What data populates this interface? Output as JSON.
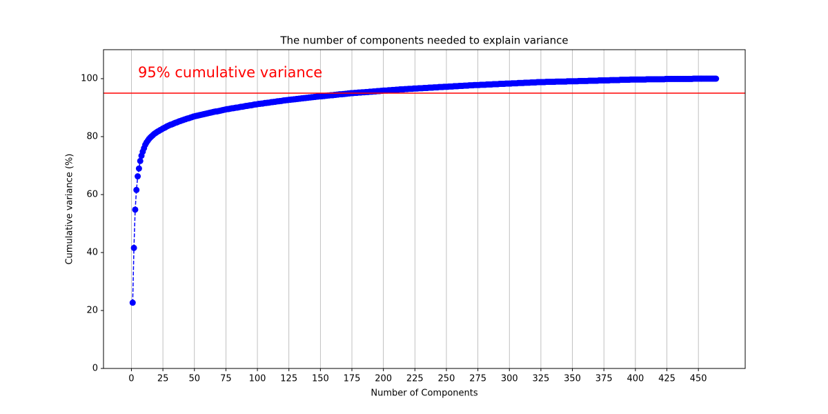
{
  "chart_data": {
    "type": "line",
    "title": "The number of components needed to explain variance",
    "xlabel": "Number of Components",
    "ylabel": "Cumulative variance (%)",
    "annotation": "95% cumulative variance",
    "hline": {
      "value": 95,
      "color": "#ff0000"
    },
    "color": "#0000ff",
    "grid": "x",
    "xlim": [
      -22.15,
      487.15
    ],
    "ylim": [
      0,
      110
    ],
    "xticks": [
      0,
      25,
      50,
      75,
      100,
      125,
      150,
      175,
      200,
      225,
      250,
      275,
      300,
      325,
      350,
      375,
      400,
      425,
      450
    ],
    "yticks": [
      0,
      20,
      40,
      60,
      80,
      100
    ],
    "x": [
      1,
      2,
      3,
      4,
      5,
      6,
      7,
      8,
      9,
      10,
      11,
      12,
      13,
      14,
      15,
      16,
      17,
      18,
      19,
      20,
      21,
      22,
      23,
      24,
      25,
      26,
      27,
      28,
      29,
      30,
      31,
      32,
      33,
      34,
      35,
      36,
      37,
      38,
      39,
      40,
      41,
      42,
      43,
      44,
      45,
      46,
      47,
      48,
      49,
      50,
      51,
      52,
      53,
      54,
      55,
      56,
      57,
      58,
      59,
      60,
      61,
      62,
      63,
      64,
      65,
      66,
      67,
      68,
      69,
      70,
      71,
      72,
      73,
      74,
      75,
      76,
      77,
      78,
      79,
      80,
      81,
      82,
      83,
      84,
      85,
      86,
      87,
      88,
      89,
      90,
      91,
      92,
      93,
      94,
      95,
      96,
      97,
      98,
      99,
      100,
      101,
      102,
      103,
      104,
      105,
      106,
      107,
      108,
      109,
      110,
      111,
      112,
      113,
      114,
      115,
      116,
      117,
      118,
      119,
      120,
      121,
      122,
      123,
      124,
      125,
      126,
      127,
      128,
      129,
      130,
      131,
      132,
      133,
      134,
      135,
      136,
      137,
      138,
      139,
      140,
      141,
      142,
      143,
      144,
      145,
      146,
      147,
      148,
      149,
      150,
      151,
      152,
      153,
      154,
      155,
      156,
      157,
      158,
      159,
      160,
      161,
      162,
      163,
      164,
      165,
      166,
      167,
      168,
      169,
      170,
      171,
      172,
      173,
      174,
      175,
      176,
      177,
      178,
      179,
      180,
      181,
      182,
      183,
      184,
      185,
      186,
      187,
      188,
      189,
      190,
      191,
      192,
      193,
      194,
      195,
      196,
      197,
      198,
      199,
      200,
      201,
      202,
      203,
      204,
      205,
      206,
      207,
      208,
      209,
      210,
      211,
      212,
      213,
      214,
      215,
      216,
      217,
      218,
      219,
      220,
      221,
      222,
      223,
      224,
      225,
      226,
      227,
      228,
      229,
      230,
      231,
      232,
      233,
      234,
      235,
      236,
      237,
      238,
      239,
      240,
      241,
      242,
      243,
      244,
      245,
      246,
      247,
      248,
      249,
      250,
      251,
      252,
      253,
      254,
      255,
      256,
      257,
      258,
      259,
      260,
      261,
      262,
      263,
      264,
      265,
      266,
      267,
      268,
      269,
      270,
      271,
      272,
      273,
      274,
      275,
      276,
      277,
      278,
      279,
      280,
      281,
      282,
      283,
      284,
      285,
      286,
      287,
      288,
      289,
      290,
      291,
      292,
      293,
      294,
      295,
      296,
      297,
      298,
      299,
      300,
      301,
      302,
      303,
      304,
      305,
      306,
      307,
      308,
      309,
      310,
      311,
      312,
      313,
      314,
      315,
      316,
      317,
      318,
      319,
      320,
      321,
      322,
      323,
      324,
      325,
      326,
      327,
      328,
      329,
      330,
      331,
      332,
      333,
      334,
      335,
      336,
      337,
      338,
      339,
      340,
      341,
      342,
      343,
      344,
      345,
      346,
      347,
      348,
      349,
      350,
      351,
      352,
      353,
      354,
      355,
      356,
      357,
      358,
      359,
      360,
      361,
      362,
      363,
      364,
      365,
      366,
      367,
      368,
      369,
      370,
      371,
      372,
      373,
      374,
      375,
      376,
      377,
      378,
      379,
      380,
      381,
      382,
      383,
      384,
      385,
      386,
      387,
      388,
      389,
      390,
      391,
      392,
      393,
      394,
      395,
      396,
      397,
      398,
      399,
      400,
      401,
      402,
      403,
      404,
      405,
      406,
      407,
      408,
      409,
      410,
      411,
      412,
      413,
      414,
      415,
      416,
      417,
      418,
      419,
      420,
      421,
      422,
      423,
      424,
      425,
      426,
      427,
      428,
      429,
      430,
      431,
      432,
      433,
      434,
      435,
      436,
      437,
      438,
      439,
      440,
      441,
      442,
      443,
      444,
      445,
      446,
      447,
      448,
      449,
      450,
      451,
      452,
      453,
      454,
      455,
      456,
      457,
      458,
      459,
      460,
      461,
      462,
      463,
      464
    ],
    "values": [
      22.7,
      41.6,
      54.8,
      61.6,
      66.3,
      69.0,
      71.6,
      73.4,
      74.8,
      76.0,
      77.2,
      78.0,
      78.6,
      79.2,
      79.7,
      80.1,
      80.5,
      80.9,
      81.2,
      81.5,
      81.8,
      82.0,
      82.3,
      82.5,
      82.8,
      83.0,
      83.2,
      83.5,
      83.7,
      83.9,
      84.1,
      84.2,
      84.4,
      84.6,
      84.8,
      84.9,
      85.1,
      85.3,
      85.4,
      85.6,
      85.7,
      85.9,
      86.0,
      86.2,
      86.3,
      86.4,
      86.6,
      86.7,
      86.9,
      87.0,
      87.1,
      87.2,
      87.3,
      87.4,
      87.5,
      87.6,
      87.7,
      87.8,
      87.9,
      88.0,
      88.1,
      88.2,
      88.3,
      88.4,
      88.5,
      88.6,
      88.7,
      88.7,
      88.8,
      88.9,
      89.0,
      89.1,
      89.2,
      89.3,
      89.4,
      89.5,
      89.5,
      89.6,
      89.7,
      89.8,
      89.8,
      89.9,
      90.0,
      90.0,
      90.1,
      90.2,
      90.3,
      90.3,
      90.4,
      90.5,
      90.6,
      90.6,
      90.7,
      90.8,
      90.8,
      90.9,
      91.0,
      91.1,
      91.1,
      91.2,
      91.3,
      91.3,
      91.4,
      91.4,
      91.5,
      91.6,
      91.6,
      91.7,
      91.7,
      91.8,
      91.9,
      91.9,
      92.0,
      92.0,
      92.1,
      92.2,
      92.2,
      92.3,
      92.3,
      92.4,
      92.5,
      92.5,
      92.6,
      92.6,
      92.7,
      92.7,
      92.8,
      92.8,
      92.9,
      92.9,
      93.0,
      93.0,
      93.1,
      93.1,
      93.2,
      93.2,
      93.3,
      93.3,
      93.4,
      93.4,
      93.5,
      93.5,
      93.6,
      93.6,
      93.7,
      93.7,
      93.8,
      93.8,
      93.9,
      93.9,
      93.9,
      94.0,
      94.0,
      94.1,
      94.1,
      94.2,
      94.2,
      94.3,
      94.3,
      94.3,
      94.4,
      94.4,
      94.5,
      94.5,
      94.6,
      94.6,
      94.6,
      94.7,
      94.7,
      94.8,
      94.8,
      94.9,
      94.9,
      95.0,
      95.0,
      95.0,
      95.1,
      95.1,
      95.1,
      95.2,
      95.2,
      95.2,
      95.3,
      95.3,
      95.3,
      95.4,
      95.4,
      95.4,
      95.5,
      95.5,
      95.5,
      95.6,
      95.6,
      95.6,
      95.7,
      95.7,
      95.7,
      95.8,
      95.8,
      95.9,
      95.9,
      95.9,
      95.9,
      96.0,
      96.0,
      96.0,
      96.1,
      96.1,
      96.1,
      96.2,
      96.2,
      96.2,
      96.3,
      96.3,
      96.3,
      96.3,
      96.4,
      96.4,
      96.4,
      96.5,
      96.5,
      96.5,
      96.5,
      96.6,
      96.6,
      96.6,
      96.6,
      96.7,
      96.7,
      96.7,
      96.7,
      96.8,
      96.8,
      96.8,
      96.8,
      96.9,
      96.9,
      96.9,
      96.9,
      97.0,
      97.0,
      97.0,
      97.0,
      97.1,
      97.1,
      97.1,
      97.1,
      97.2,
      97.2,
      97.2,
      97.2,
      97.3,
      97.3,
      97.3,
      97.3,
      97.4,
      97.4,
      97.4,
      97.4,
      97.5,
      97.5,
      97.5,
      97.5,
      97.6,
      97.6,
      97.6,
      97.6,
      97.7,
      97.7,
      97.7,
      97.7,
      97.8,
      97.8,
      97.8,
      97.8,
      97.8,
      97.9,
      97.9,
      97.9,
      97.9,
      97.9,
      98.0,
      98.0,
      98.0,
      98.0,
      98.0,
      98.1,
      98.1,
      98.1,
      98.1,
      98.1,
      98.2,
      98.2,
      98.2,
      98.2,
      98.2,
      98.3,
      98.3,
      98.3,
      98.3,
      98.3,
      98.4,
      98.4,
      98.4,
      98.4,
      98.4,
      98.5,
      98.5,
      98.5,
      98.5,
      98.5,
      98.6,
      98.6,
      98.6,
      98.6,
      98.6,
      98.7,
      98.7,
      98.7,
      98.7,
      98.7,
      98.8,
      98.8,
      98.8,
      98.8,
      98.8,
      98.8,
      98.8,
      98.9,
      98.9,
      98.9,
      98.9,
      98.9,
      98.9,
      98.9,
      98.9,
      99.0,
      99.0,
      99.0,
      99.0,
      99.0,
      99.0,
      99.0,
      99.0,
      99.0,
      99.1,
      99.1,
      99.1,
      99.1,
      99.1,
      99.1,
      99.1,
      99.1,
      99.1,
      99.2,
      99.2,
      99.2,
      99.2,
      99.2,
      99.2,
      99.2,
      99.2,
      99.3,
      99.3,
      99.3,
      99.3,
      99.3,
      99.3,
      99.3,
      99.3,
      99.4,
      99.4,
      99.4,
      99.4,
      99.4,
      99.4,
      99.4,
      99.4,
      99.4,
      99.5,
      99.5,
      99.5,
      99.5,
      99.5,
      99.5,
      99.5,
      99.5,
      99.6,
      99.6,
      99.6,
      99.6,
      99.6,
      99.6,
      99.6,
      99.6,
      99.7,
      99.7,
      99.7,
      99.7,
      99.7,
      99.7,
      99.7,
      99.7,
      99.7,
      99.7,
      99.7,
      99.7,
      99.7,
      99.8,
      99.8,
      99.8,
      99.8,
      99.8,
      99.8,
      99.8,
      99.8,
      99.8,
      99.8,
      99.8,
      99.8,
      99.8,
      99.8,
      99.8,
      99.9,
      99.9,
      99.9,
      99.9,
      99.9,
      99.9,
      99.9,
      99.9,
      99.9,
      99.9,
      99.9,
      99.9,
      99.9,
      99.9,
      99.9,
      99.9,
      99.9,
      99.9,
      99.9,
      99.9,
      99.9,
      99.9,
      100.0,
      100.0,
      100.0,
      100.0,
      100.0,
      100.0,
      100.0,
      100.0,
      100.0,
      100.0,
      100.0,
      100.0,
      100.0,
      100.0,
      100.0,
      100.0,
      100.0,
      100.0,
      100.0
    ]
  }
}
